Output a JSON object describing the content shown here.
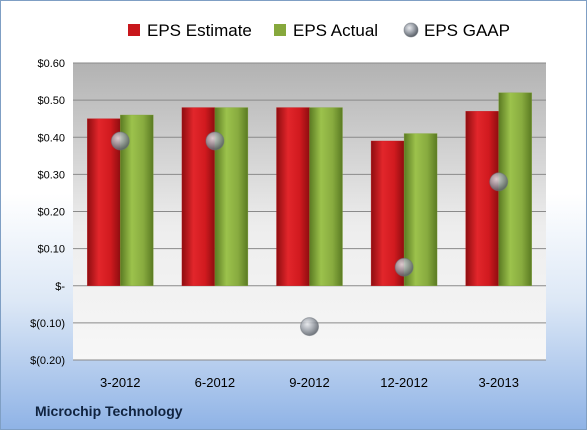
{
  "company": "Microchip Technology",
  "colors": {
    "estimate": "#c8171c",
    "actual": "#86a83c",
    "gaap": "#9aa0aa"
  },
  "chart_data": {
    "type": "bar",
    "categories": [
      "3-2012",
      "6-2012",
      "9-2012",
      "12-2012",
      "3-2013"
    ],
    "series": [
      {
        "name": "EPS Estimate",
        "kind": "bar",
        "values": [
          0.45,
          0.48,
          0.48,
          0.39,
          0.47
        ]
      },
      {
        "name": "EPS Actual",
        "kind": "bar",
        "values": [
          0.46,
          0.48,
          0.48,
          0.41,
          0.52
        ]
      },
      {
        "name": "EPS GAAP",
        "kind": "marker",
        "values": [
          0.39,
          0.39,
          -0.11,
          0.05,
          0.28
        ]
      }
    ],
    "ylim": [
      -0.2,
      0.6
    ],
    "yticks": [
      0.6,
      0.5,
      0.4,
      0.3,
      0.2,
      0.1,
      0,
      -0.1,
      -0.2
    ],
    "ytick_labels": [
      "$0.60",
      "$0.50",
      "$0.40",
      "$0.30",
      "$0.20",
      "$0.10",
      "$-",
      "$(0.10)",
      "$(0.20)"
    ],
    "grid": true,
    "legend": "top"
  }
}
